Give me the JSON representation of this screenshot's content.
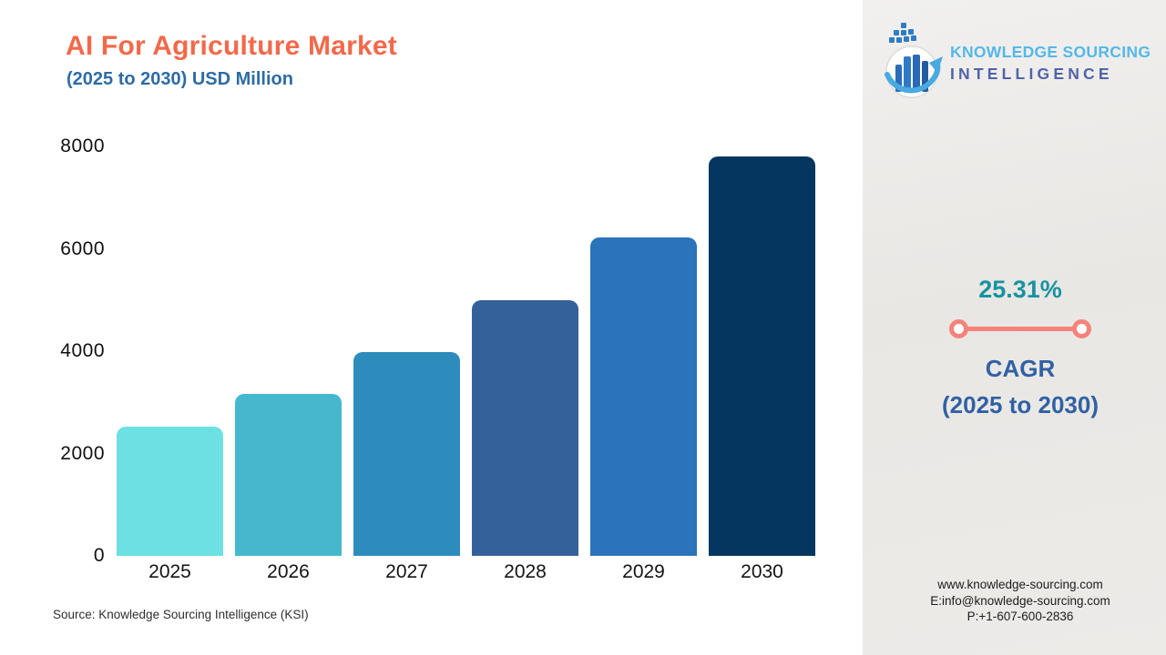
{
  "header": {
    "title": "AI For Agriculture Market",
    "subtitle": "(2025 to 2030) USD Million"
  },
  "brand": {
    "name_line1": "KNOWLEDGE SOURCING",
    "name_line2": "INTELLIGENCE"
  },
  "chart_data": {
    "type": "bar",
    "title": "AI For Agriculture Market (2025 to 2030) USD Million",
    "unit": "USD Million",
    "categories": [
      "2025",
      "2026",
      "2027",
      "2028",
      "2029",
      "2030"
    ],
    "values": [
      2520,
      3170,
      3980,
      4990,
      6230,
      7810
    ],
    "ylim": [
      0,
      8000
    ],
    "yticks": [
      0,
      2000,
      4000,
      6000,
      8000
    ],
    "bar_colors": [
      "#6CE0E3",
      "#45B8CE",
      "#2E8CBC",
      "#35619A",
      "#2B73BA",
      "#04365F"
    ],
    "grid": false,
    "legend": false,
    "xlabel": "",
    "ylabel": ""
  },
  "cagr": {
    "value": "25.31%",
    "label_line1": "CAGR",
    "label_line2": "(2025 to 2030)"
  },
  "footer": {
    "source": "Source: Knowledge Sourcing Intelligence (KSI)"
  },
  "contact": {
    "website": "www.knowledge-sourcing.com",
    "email": "E:info@knowledge-sourcing.com",
    "phone": "P:+1-607-600-2836"
  },
  "colors": {
    "title": "#F2694A",
    "subtitle": "#2D6BA5",
    "cagr_value": "#1793A2",
    "cagr_label": "#3161A5",
    "divider": "#F5837B",
    "brand_light_blue": "#55B8E8",
    "brand_dark_blue": "#5163A8"
  }
}
